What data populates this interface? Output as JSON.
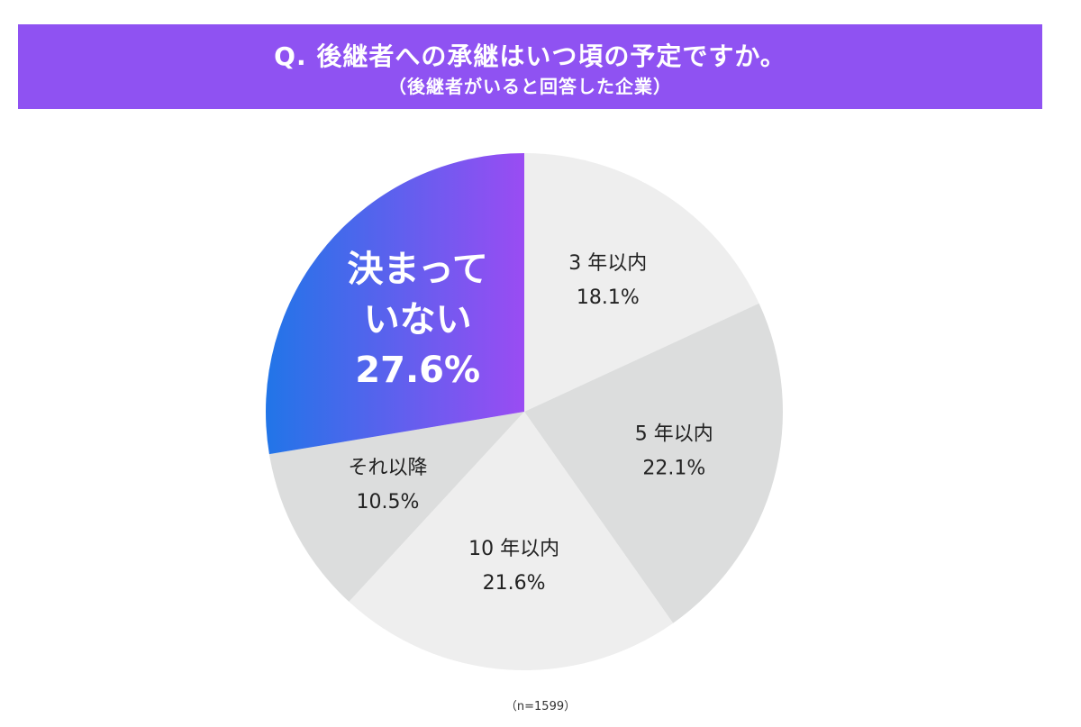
{
  "header": {
    "title": "Q. 後継者への承継はいつ頃の予定ですか。",
    "subtitle": "（後継者がいると回答した企業）"
  },
  "chart_data": {
    "type": "pie",
    "slices": [
      {
        "label_lines": [
          "3 年以内"
        ],
        "value": 18.1,
        "value_label": "18.1%",
        "color": "#eeeeee"
      },
      {
        "label_lines": [
          "5 年以内"
        ],
        "value": 22.1,
        "value_label": "22.1%",
        "color": "#dcdddd"
      },
      {
        "label_lines": [
          "10 年以内"
        ],
        "value": 21.6,
        "value_label": "21.6%",
        "color": "#eeeeee"
      },
      {
        "label_lines": [
          "それ以降"
        ],
        "value": 10.5,
        "value_label": "10.5%",
        "color": "#dcdddd"
      },
      {
        "label_lines": [
          "決まって",
          "いない"
        ],
        "value": 27.6,
        "value_label": "27.6%",
        "highlight": true,
        "gradient": [
          "#2175e8",
          "#9a4cf3"
        ]
      }
    ],
    "start": "12 o'clock",
    "direction": "clockwise"
  },
  "footnote": "（n=1599）",
  "colors": {
    "banner": "#8f52f2",
    "text": "#222222",
    "highlight_text": "#ffffff"
  }
}
